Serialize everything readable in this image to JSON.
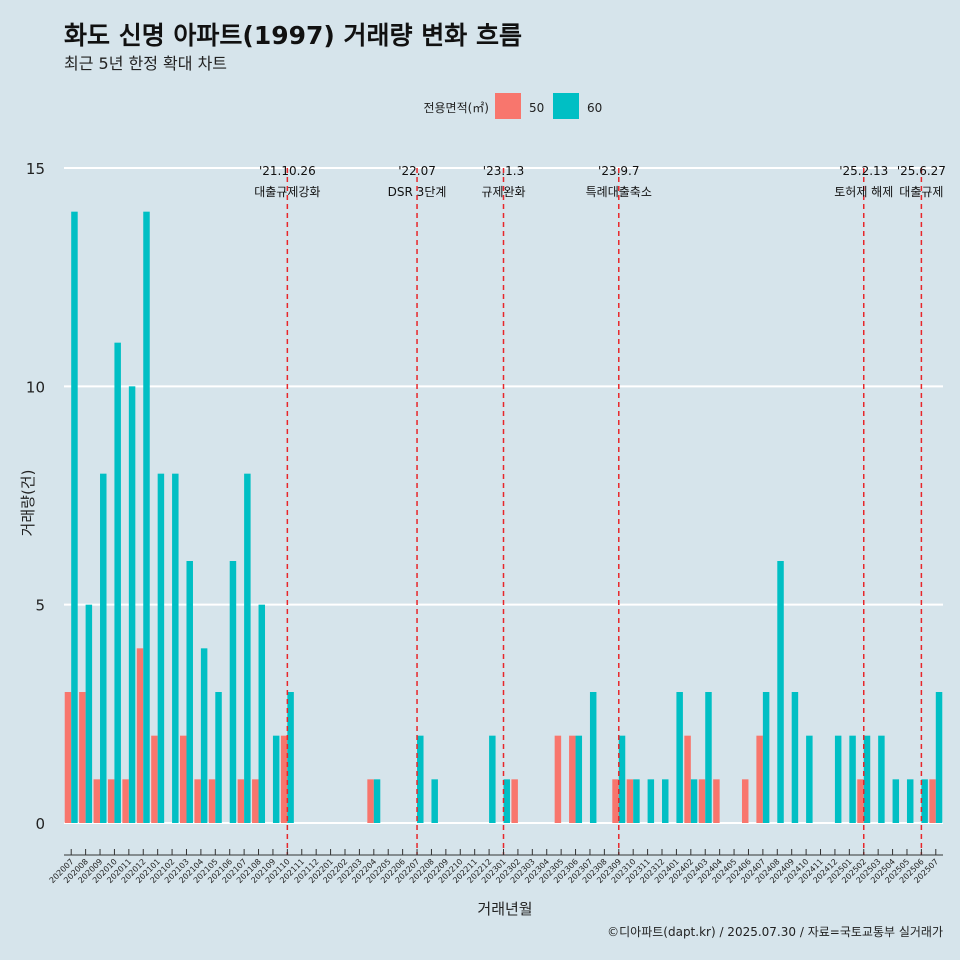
{
  "chart_data": {
    "type": "bar",
    "title": "화도 신명 아파트(1997) 거래량 변화 흐름",
    "subtitle": "최근 5년 한정 확대 차트",
    "xlabel": "거래년월",
    "ylabel": "거래량(건)",
    "caption": "©디아파트(dapt.kr) / 2025.07.30 / 자료=국토교통부 실거래가",
    "legend": {
      "title": "전용면적(㎡)",
      "position": "top"
    },
    "ylim": [
      0,
      15
    ],
    "yticks": [
      0,
      5,
      10,
      15
    ],
    "grid": true,
    "categories": [
      "202007",
      "202008",
      "202009",
      "202010",
      "202011",
      "202012",
      "202101",
      "202102",
      "202103",
      "202104",
      "202105",
      "202106",
      "202107",
      "202108",
      "202109",
      "202110",
      "202111",
      "202112",
      "202201",
      "202202",
      "202203",
      "202204",
      "202205",
      "202206",
      "202207",
      "202208",
      "202209",
      "202210",
      "202211",
      "202212",
      "202301",
      "202302",
      "202303",
      "202304",
      "202305",
      "202306",
      "202307",
      "202308",
      "202309",
      "202310",
      "202311",
      "202312",
      "202401",
      "202402",
      "202403",
      "202404",
      "202405",
      "202406",
      "202407",
      "202408",
      "202409",
      "202410",
      "202411",
      "202412",
      "202501",
      "202502",
      "202503",
      "202504",
      "202505",
      "202506",
      "202507"
    ],
    "series": [
      {
        "name": "50",
        "color": "#f8766d",
        "values": [
          3,
          3,
          1,
          1,
          1,
          4,
          2,
          0,
          2,
          1,
          1,
          0,
          1,
          1,
          0,
          2,
          0,
          0,
          0,
          0,
          0,
          1,
          0,
          0,
          0,
          0,
          0,
          0,
          0,
          0,
          0,
          1,
          0,
          0,
          2,
          2,
          0,
          0,
          1,
          1,
          0,
          0,
          0,
          2,
          1,
          1,
          0,
          1,
          2,
          0,
          0,
          0,
          0,
          0,
          0,
          1,
          0,
          0,
          0,
          0,
          1
        ]
      },
      {
        "name": "60",
        "color": "#00bfc4",
        "values": [
          14,
          5,
          8,
          11,
          10,
          14,
          8,
          8,
          6,
          4,
          3,
          6,
          8,
          5,
          2,
          3,
          0,
          0,
          0,
          0,
          0,
          1,
          0,
          0,
          2,
          1,
          0,
          0,
          0,
          2,
          1,
          0,
          0,
          0,
          0,
          2,
          3,
          0,
          2,
          1,
          1,
          1,
          3,
          1,
          3,
          0,
          0,
          0,
          3,
          6,
          3,
          2,
          0,
          2,
          2,
          2,
          2,
          1,
          1,
          1,
          3
        ]
      }
    ],
    "annotations": [
      {
        "x": "202110",
        "date": "'21.10.26",
        "label": "대출규제강화"
      },
      {
        "x": "202207",
        "date": "'22.07",
        "label": "DSR 3단계"
      },
      {
        "x": "202301",
        "date": "'23.1.3",
        "label": "규제완화"
      },
      {
        "x": "202309",
        "date": "'23.9.7",
        "label": "특례대출축소"
      },
      {
        "x": "202502",
        "date": "'25.2.13",
        "label": "토허제 해제"
      },
      {
        "x": "202506",
        "date": "'25.6.27",
        "label": "대출규제"
      }
    ],
    "annotation_color": "#e8262a"
  }
}
